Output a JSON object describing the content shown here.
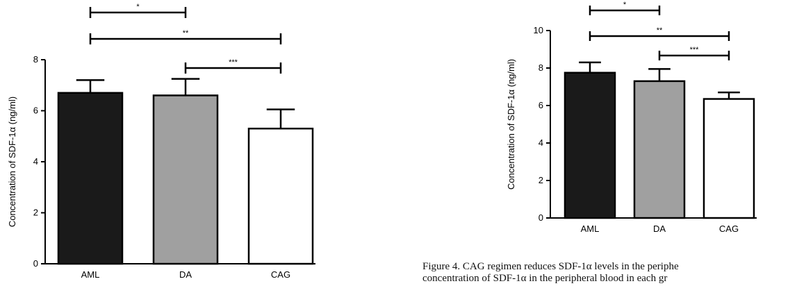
{
  "chart_data": [
    {
      "type": "bar",
      "categories": [
        "AML",
        "DA",
        "CAG"
      ],
      "values": [
        6.7,
        6.6,
        5.3
      ],
      "errors": [
        0.5,
        0.65,
        0.75
      ],
      "colors": [
        "#1a1a1a",
        "#a0a0a0",
        "#ffffff"
      ],
      "ylabel": "Concentration of SDF-1α (ng/ml)",
      "ylim": [
        0,
        8
      ],
      "yticks": [
        "0",
        "2",
        "4",
        "6",
        "8"
      ],
      "significance": [
        {
          "from": 0,
          "to": 1,
          "label": "*"
        },
        {
          "from": 0,
          "to": 2,
          "label": "**"
        },
        {
          "from": 1,
          "to": 2,
          "label": "***"
        }
      ]
    },
    {
      "type": "bar",
      "categories": [
        "AML",
        "DA",
        "CAG"
      ],
      "values": [
        7.75,
        7.3,
        6.35
      ],
      "errors": [
        0.55,
        0.65,
        0.35
      ],
      "colors": [
        "#1a1a1a",
        "#a0a0a0",
        "#ffffff"
      ],
      "ylabel": "Concentration of SDF-1α (ng/ml)",
      "ylim": [
        0,
        10
      ],
      "yticks": [
        "0",
        "2",
        "4",
        "6",
        "8",
        "10"
      ],
      "significance": [
        {
          "from": 0,
          "to": 1,
          "label": "*"
        },
        {
          "from": 0,
          "to": 2,
          "label": "**"
        },
        {
          "from": 1,
          "to": 2,
          "label": "***"
        }
      ]
    }
  ],
  "caption": {
    "line1": "Figure 4. CAG regimen reduces SDF-1α levels in the periphe",
    "line2": "concentration of SDF-1α in the peripheral blood in each gr"
  }
}
